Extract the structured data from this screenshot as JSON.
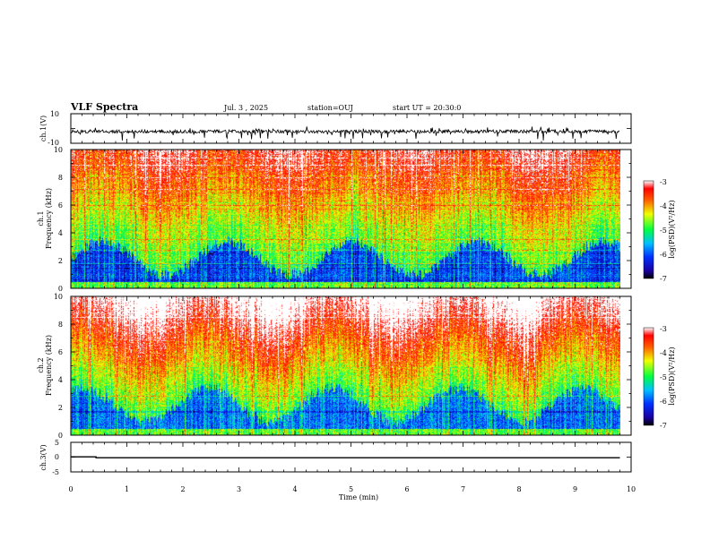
{
  "header": {
    "title": "VLF Spectra",
    "date": "Jul. 3 , 2025",
    "station": "station=OUJ",
    "start": "start UT = 20:30:0"
  },
  "chart_data": [
    {
      "type": "line",
      "id": "ch1-waveform",
      "ylabel": "ch.1(V)",
      "ylim": [
        -10,
        10
      ],
      "yticks": [
        "10",
        "-10"
      ],
      "xlim": [
        0,
        10
      ],
      "series": [
        {
          "x": [
            0,
            9.8
          ],
          "y": [
            -2,
            -2
          ]
        }
      ]
    },
    {
      "type": "heatmap",
      "id": "ch1-spectrogram",
      "ylabel_top": "ch.1",
      "ylabel": "Frequency (kHz)",
      "ylim": [
        0,
        10
      ],
      "yticks": [
        "0",
        "2",
        "4",
        "6",
        "8",
        "10"
      ],
      "xlim": [
        0,
        10
      ],
      "data_end_min": 9.8,
      "colorbar": {
        "label": "log(PSD)(V²/Hz)",
        "range": [
          -7,
          -3
        ],
        "ticks": [
          "-3",
          "-4",
          "-5",
          "-6",
          "-7"
        ]
      }
    },
    {
      "type": "heatmap",
      "id": "ch2-spectrogram",
      "ylabel_top": "ch.2",
      "ylabel": "Frequency (kHz)",
      "ylim": [
        0,
        10
      ],
      "yticks": [
        "0",
        "2",
        "4",
        "6",
        "8",
        "10"
      ],
      "xlim": [
        0,
        10
      ],
      "data_end_min": 9.8,
      "colorbar": {
        "label": "log(PSD)(V²/Hz)",
        "range": [
          -7,
          -3
        ],
        "ticks": [
          "-3",
          "-4",
          "-5",
          "-6",
          "-7"
        ]
      }
    },
    {
      "type": "line",
      "id": "ch3-waveform",
      "ylabel": "ch.3(V)",
      "ylim": [
        -5,
        5
      ],
      "yticks": [
        "5",
        "0",
        "-5"
      ],
      "xlim": [
        0,
        10
      ],
      "xlabel": "Time (min)",
      "xticks": [
        "0",
        "1",
        "2",
        "3",
        "4",
        "5",
        "6",
        "7",
        "8",
        "9",
        "10"
      ],
      "series": [
        {
          "x": [
            0,
            0.45,
            0.45,
            9.8
          ],
          "y": [
            0.1,
            0.1,
            -0.2,
            -0.2
          ]
        }
      ]
    }
  ]
}
